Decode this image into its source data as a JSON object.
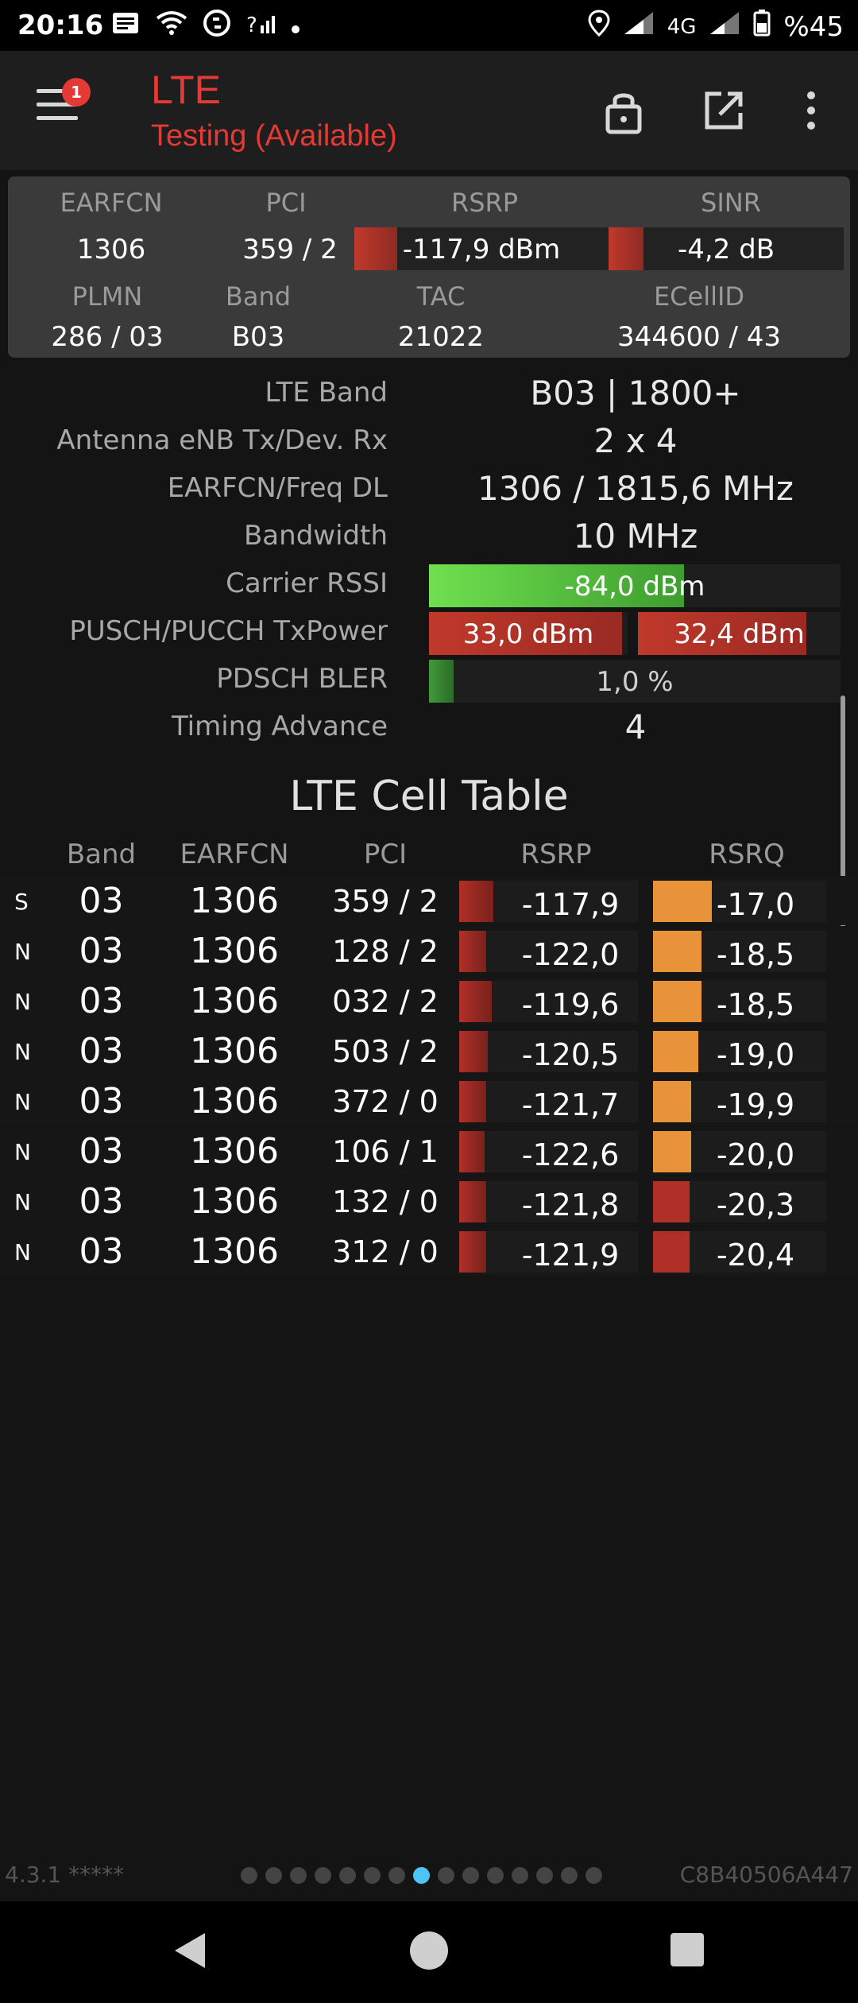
{
  "status_bar": {
    "time": "20:16",
    "network": "4G",
    "battery": "%45",
    "icons": [
      "message-icon",
      "wifi-icon",
      "shazam-icon",
      "signal-question-icon",
      "dot-icon",
      "location-icon",
      "signal-icon",
      "signal-icon",
      "battery-icon"
    ]
  },
  "app_bar": {
    "title": "LTE",
    "subtitle": "Testing (Available)",
    "badge": "1",
    "accent": "#e53935"
  },
  "summary": {
    "earfcn_label": "EARFCN",
    "pci_label": "PCI",
    "rsrp_label": "RSRP",
    "sinr_label": "SINR",
    "earfcn": "1306",
    "pci": "359 / 2",
    "rsrp": "-117,9 dBm",
    "rsrp_level": 0.17,
    "sinr": "-4,2 dB",
    "sinr_level": 0.15,
    "plmn_label": "PLMN",
    "band_label": "Band",
    "tac_label": "TAC",
    "ecellid_label": "ECellID",
    "plmn": "286 / 03",
    "band": "B03",
    "tac": "21022",
    "ecellid": "344600 / 43"
  },
  "details": {
    "lte_band_label": "LTE Band",
    "lte_band": "B03 | 1800+",
    "antenna_label": "Antenna eNB Tx/Dev. Rx",
    "antenna": "2 x 4",
    "earfcn_freq_label": "EARFCN/Freq DL",
    "earfcn_freq": "1306 / 1815,6 MHz",
    "bandwidth_label": "Bandwidth",
    "bandwidth": "10 MHz",
    "rssi_label": "Carrier RSSI",
    "rssi": "-84,0 dBm",
    "rssi_level": 0.62,
    "txpower_label": "PUSCH/PUCCH TxPower",
    "pusch": "33,0 dBm",
    "pusch_level": 0.97,
    "pucch": "32,4 dBm",
    "pucch_level": 0.83,
    "bler_label": "PDSCH BLER",
    "bler": "1,0 %",
    "bler_level": 0.06,
    "timing_label": "Timing Advance",
    "timing": "4"
  },
  "cell_table": {
    "title": "LTE Cell Table",
    "headers": {
      "band": "Band",
      "earfcn": "EARFCN",
      "pci": "PCI",
      "rsrp": "RSRP",
      "rsrq": "RSRQ"
    },
    "rows": [
      {
        "type": "S",
        "band": "03",
        "earfcn": "1306",
        "pci": "359 / 2",
        "rsrp": "-117,9",
        "rsrp_level": 0.19,
        "rsrq": "-17,0",
        "rsrq_level": 0.34,
        "rsrq_color": "#e8923a"
      },
      {
        "type": "N",
        "band": "03",
        "earfcn": "1306",
        "pci": "128 / 2",
        "rsrp": "-122,0",
        "rsrp_level": 0.15,
        "rsrq": "-18,5",
        "rsrq_level": 0.28,
        "rsrq_color": "#e8923a"
      },
      {
        "type": "N",
        "band": "03",
        "earfcn": "1306",
        "pci": "032 / 2",
        "rsrp": "-119,6",
        "rsrp_level": 0.18,
        "rsrq": "-18,5",
        "rsrq_level": 0.28,
        "rsrq_color": "#e8923a"
      },
      {
        "type": "N",
        "band": "03",
        "earfcn": "1306",
        "pci": "503 / 2",
        "rsrp": "-120,5",
        "rsrp_level": 0.16,
        "rsrq": "-19,0",
        "rsrq_level": 0.26,
        "rsrq_color": "#e8923a"
      },
      {
        "type": "N",
        "band": "03",
        "earfcn": "1306",
        "pci": "372 / 0",
        "rsrp": "-121,7",
        "rsrp_level": 0.15,
        "rsrq": "-19,9",
        "rsrq_level": 0.22,
        "rsrq_color": "#e8923a"
      },
      {
        "type": "N",
        "band": "03",
        "earfcn": "1306",
        "pci": "106 / 1",
        "rsrp": "-122,6",
        "rsrp_level": 0.14,
        "rsrq": "-20,0",
        "rsrq_level": 0.22,
        "rsrq_color": "#e8923a"
      },
      {
        "type": "N",
        "band": "03",
        "earfcn": "1306",
        "pci": "132 / 0",
        "rsrp": "-121,8",
        "rsrp_level": 0.15,
        "rsrq": "-20,3",
        "rsrq_level": 0.21,
        "rsrq_color": "#b03028"
      },
      {
        "type": "N",
        "band": "03",
        "earfcn": "1306",
        "pci": "312 / 0",
        "rsrp": "-121,9",
        "rsrp_level": 0.15,
        "rsrq": "-20,4",
        "rsrq_level": 0.21,
        "rsrq_color": "#b03028"
      }
    ]
  },
  "footer": {
    "version": "4.3.1 *****",
    "device_id": "C8B40506A447",
    "page_count": 15,
    "active_page": 8
  }
}
